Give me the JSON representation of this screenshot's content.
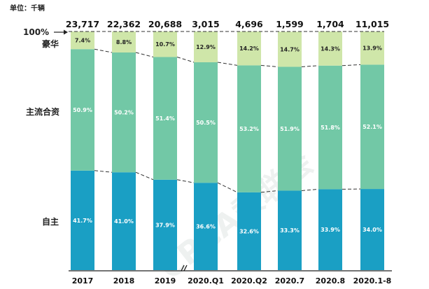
{
  "chart_data": {
    "type": "bar",
    "stacked": "percent",
    "unit_label": "单位：千辆",
    "top_label": "100%",
    "watermark": "CPCA乘联会",
    "categories": [
      "2017",
      "2018",
      "2019",
      "2020.Q1",
      "2020.Q2",
      "2020.7",
      "2020.8",
      "2020.1-8"
    ],
    "totals": [
      "23,717",
      "22,362",
      "20,688",
      "3,015",
      "4,696",
      "1,599",
      "1,704",
      "11,015"
    ],
    "series": [
      {
        "name": "自主",
        "values": [
          41.7,
          41.0,
          37.9,
          36.6,
          32.6,
          33.3,
          33.9,
          34.0
        ],
        "labels": [
          "41.7%",
          "41.0%",
          "37.9%",
          "36.6%",
          "32.6%",
          "33.3%",
          "33.9%",
          "34.0%"
        ],
        "color": "#1a9fc4"
      },
      {
        "name": "主流合资",
        "values": [
          50.9,
          50.2,
          51.4,
          50.5,
          53.2,
          51.9,
          51.8,
          52.1
        ],
        "labels": [
          "50.9%",
          "50.2%",
          "51.4%",
          "50.5%",
          "53.2%",
          "51.9%",
          "51.8%",
          "52.1%"
        ],
        "color": "#72c8a6"
      },
      {
        "name": "豪华",
        "values": [
          7.4,
          8.8,
          10.7,
          12.9,
          14.2,
          14.7,
          14.3,
          13.9
        ],
        "labels": [
          "7.4%",
          "8.8%",
          "10.7%",
          "12.9%",
          "14.2%",
          "14.7%",
          "14.3%",
          "13.9%"
        ],
        "color": "#cfe6a9"
      }
    ],
    "ylim": [
      0,
      100
    ],
    "grid": false,
    "axis_break_after": "2019"
  }
}
